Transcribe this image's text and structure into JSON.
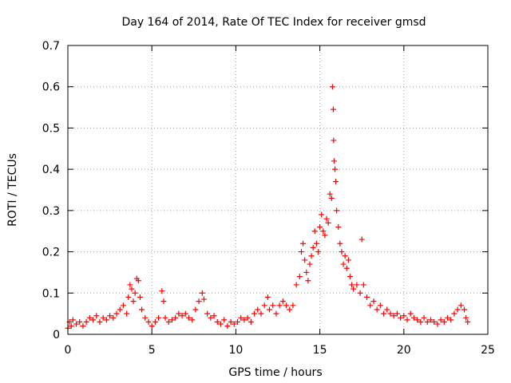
{
  "chart_data": {
    "type": "scatter",
    "title": "Day 164 of 2014, Rate Of TEC Index for receiver gmsd",
    "xlabel": "GPS time / hours",
    "ylabel": "ROTI / TECUs",
    "xlim": [
      0,
      25
    ],
    "ylim": [
      0,
      0.7
    ],
    "xticks": [
      0,
      5,
      10,
      15,
      20,
      25
    ],
    "yticks": [
      0,
      0.1,
      0.2,
      0.3,
      0.4,
      0.5,
      0.6,
      0.7
    ],
    "xtick_labels": [
      "0",
      "5",
      "10",
      "15",
      "20",
      "25"
    ],
    "ytick_labels": [
      "0",
      "0.1",
      "0.2",
      "0.3",
      "0.4",
      "0.5",
      "0.6",
      "0.7"
    ],
    "grid": true,
    "marker": "+",
    "color": "#ff0000",
    "series": [
      {
        "name": "ROTI",
        "points": [
          [
            0.0,
            0.015
          ],
          [
            0.1,
            0.03
          ],
          [
            0.2,
            0.02
          ],
          [
            0.3,
            0.035
          ],
          [
            0.5,
            0.025
          ],
          [
            0.7,
            0.03
          ],
          [
            0.9,
            0.02
          ],
          [
            1.1,
            0.03
          ],
          [
            1.3,
            0.04
          ],
          [
            1.5,
            0.035
          ],
          [
            1.7,
            0.045
          ],
          [
            1.9,
            0.03
          ],
          [
            2.1,
            0.04
          ],
          [
            2.3,
            0.035
          ],
          [
            2.5,
            0.045
          ],
          [
            2.7,
            0.04
          ],
          [
            2.9,
            0.05
          ],
          [
            3.1,
            0.06
          ],
          [
            3.3,
            0.07
          ],
          [
            3.5,
            0.05
          ],
          [
            3.6,
            0.09
          ],
          [
            3.7,
            0.12
          ],
          [
            3.8,
            0.11
          ],
          [
            3.9,
            0.08
          ],
          [
            4.0,
            0.1
          ],
          [
            4.1,
            0.135
          ],
          [
            4.2,
            0.13
          ],
          [
            4.3,
            0.09
          ],
          [
            4.4,
            0.06
          ],
          [
            4.6,
            0.04
          ],
          [
            4.8,
            0.03
          ],
          [
            5.0,
            0.02
          ],
          [
            5.2,
            0.03
          ],
          [
            5.4,
            0.04
          ],
          [
            5.6,
            0.105
          ],
          [
            5.7,
            0.08
          ],
          [
            5.8,
            0.04
          ],
          [
            6.0,
            0.03
          ],
          [
            6.2,
            0.035
          ],
          [
            6.4,
            0.04
          ],
          [
            6.6,
            0.05
          ],
          [
            6.8,
            0.045
          ],
          [
            7.0,
            0.05
          ],
          [
            7.2,
            0.04
          ],
          [
            7.4,
            0.035
          ],
          [
            7.6,
            0.06
          ],
          [
            7.8,
            0.08
          ],
          [
            8.0,
            0.1
          ],
          [
            8.1,
            0.085
          ],
          [
            8.3,
            0.05
          ],
          [
            8.5,
            0.04
          ],
          [
            8.7,
            0.045
          ],
          [
            8.9,
            0.03
          ],
          [
            9.1,
            0.025
          ],
          [
            9.3,
            0.035
          ],
          [
            9.5,
            0.02
          ],
          [
            9.7,
            0.03
          ],
          [
            9.9,
            0.025
          ],
          [
            10.1,
            0.03
          ],
          [
            10.3,
            0.04
          ],
          [
            10.5,
            0.035
          ],
          [
            10.7,
            0.04
          ],
          [
            10.9,
            0.03
          ],
          [
            11.1,
            0.05
          ],
          [
            11.3,
            0.06
          ],
          [
            11.5,
            0.05
          ],
          [
            11.7,
            0.07
          ],
          [
            11.9,
            0.09
          ],
          [
            12.0,
            0.06
          ],
          [
            12.2,
            0.07
          ],
          [
            12.4,
            0.05
          ],
          [
            12.6,
            0.07
          ],
          [
            12.8,
            0.08
          ],
          [
            13.0,
            0.07
          ],
          [
            13.2,
            0.06
          ],
          [
            13.4,
            0.07
          ],
          [
            13.6,
            0.12
          ],
          [
            13.8,
            0.14
          ],
          [
            13.9,
            0.2
          ],
          [
            14.0,
            0.22
          ],
          [
            14.1,
            0.18
          ],
          [
            14.2,
            0.15
          ],
          [
            14.3,
            0.13
          ],
          [
            14.4,
            0.17
          ],
          [
            14.5,
            0.19
          ],
          [
            14.6,
            0.21
          ],
          [
            14.7,
            0.25
          ],
          [
            14.8,
            0.22
          ],
          [
            14.9,
            0.2
          ],
          [
            15.0,
            0.26
          ],
          [
            15.1,
            0.29
          ],
          [
            15.2,
            0.25
          ],
          [
            15.3,
            0.24
          ],
          [
            15.4,
            0.28
          ],
          [
            15.5,
            0.27
          ],
          [
            15.6,
            0.34
          ],
          [
            15.7,
            0.33
          ],
          [
            15.75,
            0.6
          ],
          [
            15.8,
            0.545
          ],
          [
            15.82,
            0.47
          ],
          [
            15.85,
            0.42
          ],
          [
            15.9,
            0.4
          ],
          [
            15.95,
            0.37
          ],
          [
            16.0,
            0.3
          ],
          [
            16.1,
            0.26
          ],
          [
            16.2,
            0.22
          ],
          [
            16.3,
            0.2
          ],
          [
            16.4,
            0.17
          ],
          [
            16.5,
            0.19
          ],
          [
            16.6,
            0.16
          ],
          [
            16.7,
            0.18
          ],
          [
            16.8,
            0.14
          ],
          [
            16.9,
            0.12
          ],
          [
            17.0,
            0.11
          ],
          [
            17.2,
            0.12
          ],
          [
            17.4,
            0.1
          ],
          [
            17.5,
            0.23
          ],
          [
            17.6,
            0.12
          ],
          [
            17.8,
            0.09
          ],
          [
            18.0,
            0.07
          ],
          [
            18.2,
            0.08
          ],
          [
            18.4,
            0.06
          ],
          [
            18.6,
            0.07
          ],
          [
            18.8,
            0.05
          ],
          [
            19.0,
            0.06
          ],
          [
            19.2,
            0.05
          ],
          [
            19.4,
            0.045
          ],
          [
            19.6,
            0.05
          ],
          [
            19.8,
            0.04
          ],
          [
            20.0,
            0.045
          ],
          [
            20.2,
            0.035
          ],
          [
            20.4,
            0.05
          ],
          [
            20.6,
            0.04
          ],
          [
            20.8,
            0.035
          ],
          [
            21.0,
            0.03
          ],
          [
            21.2,
            0.04
          ],
          [
            21.4,
            0.03
          ],
          [
            21.6,
            0.035
          ],
          [
            21.8,
            0.03
          ],
          [
            22.0,
            0.025
          ],
          [
            22.2,
            0.035
          ],
          [
            22.4,
            0.03
          ],
          [
            22.6,
            0.04
          ],
          [
            22.8,
            0.035
          ],
          [
            23.0,
            0.05
          ],
          [
            23.2,
            0.06
          ],
          [
            23.4,
            0.07
          ],
          [
            23.6,
            0.06
          ],
          [
            23.7,
            0.04
          ],
          [
            23.8,
            0.03
          ]
        ]
      }
    ]
  }
}
